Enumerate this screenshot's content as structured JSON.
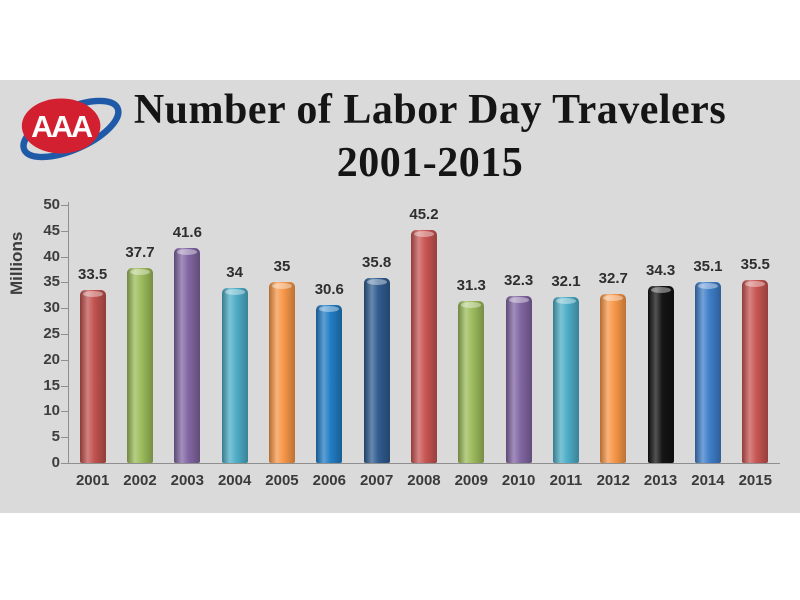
{
  "page": {
    "background": "#ffffff",
    "panel_background": "#dbdada"
  },
  "header": {
    "logo_text": "AAA",
    "logo_oval_color": "#d22030",
    "logo_swoosh_color": "#1f5aa8",
    "title_line1": "Number of Labor Day Travelers",
    "title_line2": "2001-2015"
  },
  "chart_data": {
    "type": "bar",
    "title": "Number of Labor Day Travelers 2001-2015",
    "xlabel": "",
    "ylabel": "Millions",
    "categories": [
      "2001",
      "2002",
      "2003",
      "2004",
      "2005",
      "2006",
      "2007",
      "2008",
      "2009",
      "2010",
      "2011",
      "2012",
      "2013",
      "2014",
      "2015"
    ],
    "values": [
      33.5,
      37.7,
      41.6,
      34,
      35,
      30.6,
      35.8,
      45.2,
      31.3,
      32.3,
      32.1,
      32.7,
      34.3,
      35.1,
      35.5
    ],
    "value_labels": [
      "33.5",
      "37.7",
      "41.6",
      "34",
      "35",
      "30.6",
      "35.8",
      "45.2",
      "31.3",
      "32.3",
      "32.1",
      "32.7",
      "34.3",
      "35.1",
      "35.5"
    ],
    "bar_colors": [
      "#c0504d",
      "#9bbb59",
      "#8064a2",
      "#4bacc6",
      "#f79646",
      "#1f7bc4",
      "#2d5a8e",
      "#c75350",
      "#9bbb59",
      "#8064a2",
      "#4bacc6",
      "#f79646",
      "#111111",
      "#3c7cc8",
      "#c75350"
    ],
    "y_ticks": [
      0,
      5,
      10,
      15,
      20,
      25,
      30,
      35,
      40,
      45,
      50
    ],
    "ylim": [
      0,
      50
    ],
    "grid": false,
    "legend": null,
    "axis_color": "#8f8f8f"
  }
}
